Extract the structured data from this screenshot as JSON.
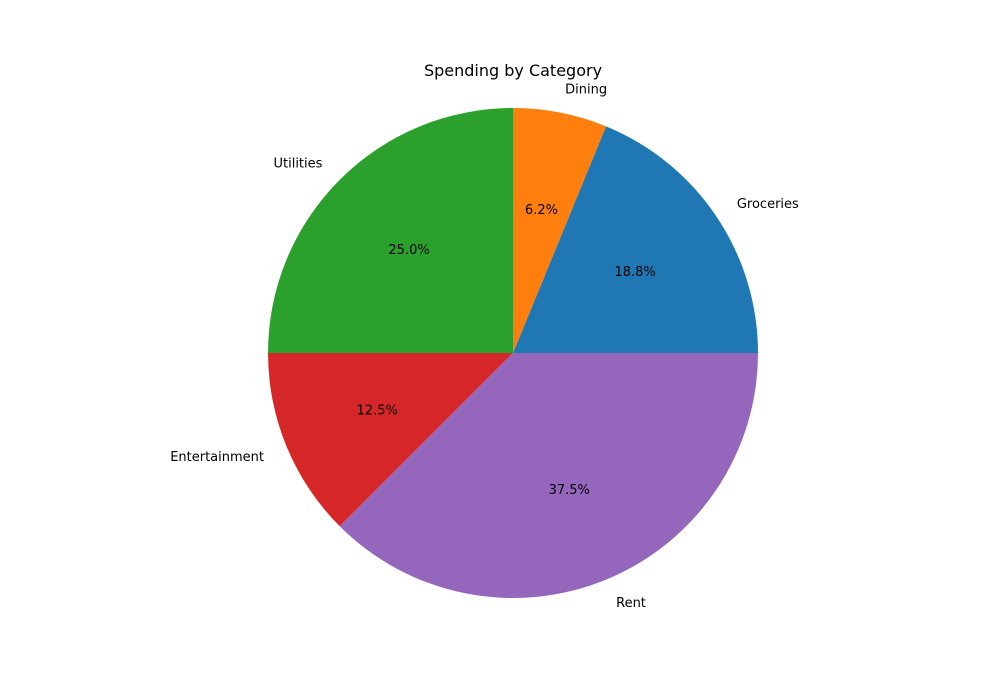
{
  "chart_data": {
    "type": "pie",
    "title": "Spending by Category",
    "start_angle_deg": 0,
    "direction": "counterclockwise",
    "slices": [
      {
        "label": "Groceries",
        "value": 18.8,
        "pct_label": "18.8%",
        "color": "#1f77b4"
      },
      {
        "label": "Dining",
        "value": 6.2,
        "pct_label": "6.2%",
        "color": "#ff7f0e"
      },
      {
        "label": "Utilities",
        "value": 25.0,
        "pct_label": "25.0%",
        "color": "#2ca02c"
      },
      {
        "label": "Entertainment",
        "value": 12.5,
        "pct_label": "12.5%",
        "color": "#d62728"
      },
      {
        "label": "Rent",
        "value": 37.5,
        "pct_label": "37.5%",
        "color": "#9467bd"
      }
    ]
  }
}
